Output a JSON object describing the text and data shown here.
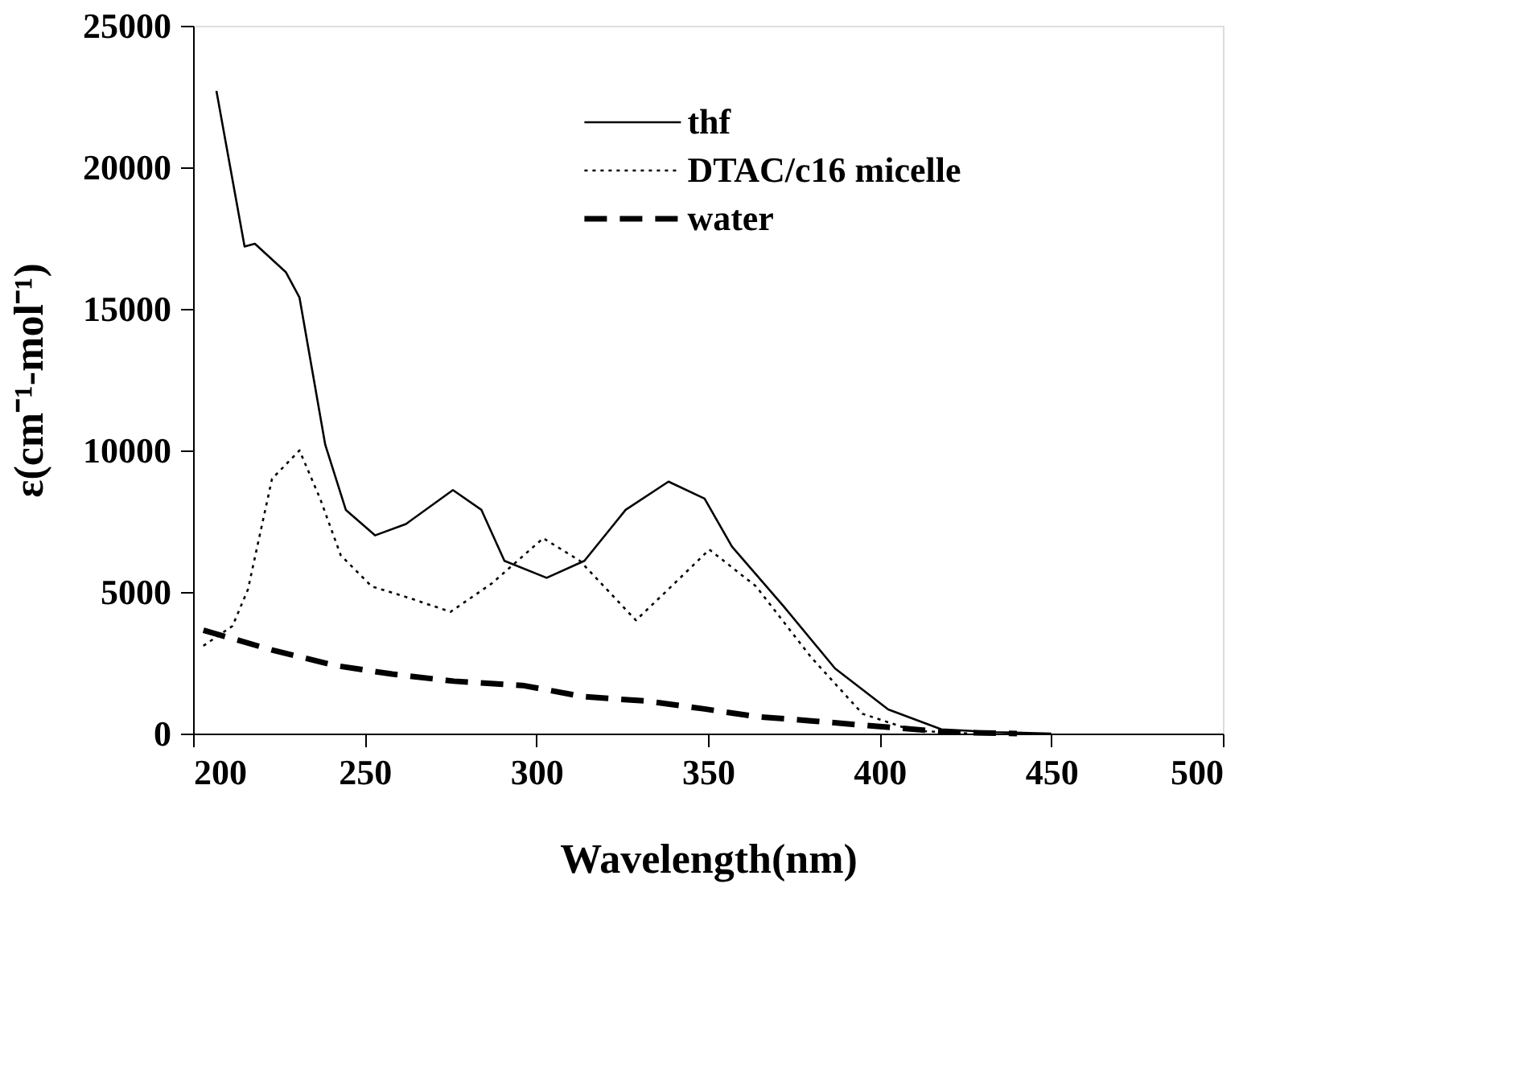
{
  "chart_data": {
    "type": "line",
    "xlabel": "Wavelength(nm)",
    "ylabel": "ε(cm⁻¹-mol⁻¹)",
    "xlim": [
      200,
      500
    ],
    "ylim": [
      0,
      25000
    ],
    "xticks": [
      200,
      250,
      300,
      350,
      400,
      450,
      500
    ],
    "yticks": [
      0,
      5000,
      10000,
      15000,
      20000,
      25000
    ],
    "grid": false,
    "legend": "top",
    "marker": "none",
    "series": [
      {
        "name": "thf",
        "color": "#000000",
        "line_style": "solid",
        "x": [
          206.8,
          215,
          218,
          227,
          231,
          238.5,
          244.5,
          253,
          262,
          275.7,
          284,
          290.7,
          303,
          314,
          326,
          338.5,
          349,
          357,
          372,
          387,
          402.5,
          418,
          433.5,
          450
        ],
        "values": [
          22700,
          17200,
          17300,
          16300,
          15400,
          10200,
          7900,
          7000,
          7400,
          8600,
          7900,
          6100,
          5500,
          6100,
          7900,
          8900,
          8300,
          6600,
          4500,
          2300,
          850,
          150,
          50,
          0
        ]
      },
      {
        "name": "DTAC/c16  micelle",
        "color": "#000000",
        "line_style": "dotted",
        "x": [
          203,
          211.5,
          216,
          223,
          231,
          237,
          243,
          252,
          262.7,
          275,
          287,
          302,
          312.7,
          329,
          338.5,
          350.4,
          364,
          380,
          395,
          410,
          427
        ],
        "values": [
          3100,
          3800,
          5100,
          9000,
          10000,
          8300,
          6300,
          5200,
          4800,
          4300,
          5300,
          6900,
          6100,
          4000,
          5100,
          6500,
          5200,
          2700,
          700,
          100,
          0
        ]
      },
      {
        "name": "water",
        "color": "#000000",
        "line_style": "dashed",
        "x": [
          203,
          223,
          241.5,
          258,
          276,
          296,
          314,
          332,
          349,
          364,
          380,
          400,
          420,
          440
        ],
        "values": [
          3650,
          2950,
          2400,
          2100,
          1850,
          1700,
          1300,
          1150,
          870,
          600,
          450,
          250,
          50,
          0
        ]
      }
    ]
  }
}
